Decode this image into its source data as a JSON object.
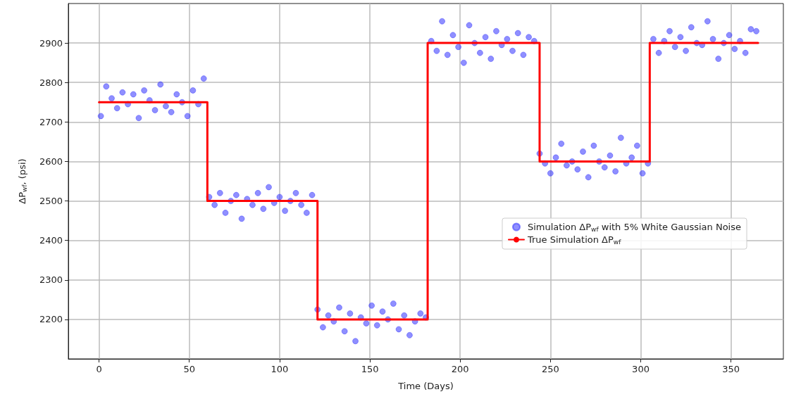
{
  "chart_data": {
    "type": "scatter",
    "xlabel": "Time (Days)",
    "ylabel": "ΔP$_{wf}$, (psi)",
    "x": [
      1,
      4,
      7,
      10,
      13,
      16,
      19,
      22,
      25,
      28,
      31,
      34,
      37,
      40,
      43,
      46,
      49,
      52,
      55,
      58,
      61,
      64,
      67,
      70,
      73,
      76,
      79,
      82,
      85,
      88,
      91,
      94,
      97,
      100,
      103,
      106,
      109,
      112,
      115,
      118,
      121,
      124,
      127,
      130,
      133,
      136,
      139,
      142,
      145,
      148,
      151,
      154,
      157,
      160,
      163,
      166,
      169,
      172,
      175,
      178,
      181,
      184,
      187,
      190,
      193,
      196,
      199,
      202,
      205,
      208,
      211,
      214,
      217,
      220,
      223,
      226,
      229,
      232,
      235,
      238,
      241,
      244,
      247,
      250,
      253,
      256,
      259,
      262,
      265,
      268,
      271,
      274,
      277,
      280,
      283,
      286,
      289,
      292,
      295,
      298,
      301,
      304,
      307,
      310,
      313,
      316,
      319,
      322,
      325,
      328,
      331,
      334,
      337,
      340,
      343,
      346,
      349,
      352,
      355,
      358,
      361,
      364
    ],
    "series": [
      {
        "name": "Simulation ΔP$_{wf}$ with 5% White Gaussian Noise",
        "color": "#3333ff",
        "marker": "circle",
        "values": [
          2715,
          2790,
          2760,
          2735,
          2775,
          2745,
          2770,
          2710,
          2780,
          2755,
          2730,
          2795,
          2740,
          2725,
          2770,
          2750,
          2715,
          2780,
          2745,
          2810,
          2510,
          2490,
          2520,
          2470,
          2500,
          2515,
          2455,
          2505,
          2490,
          2520,
          2480,
          2535,
          2495,
          2510,
          2475,
          2500,
          2520,
          2490,
          2470,
          2515,
          2225,
          2180,
          2210,
          2195,
          2230,
          2170,
          2215,
          2145,
          2205,
          2190,
          2235,
          2185,
          2220,
          2200,
          2240,
          2175,
          2210,
          2160,
          2195,
          2215,
          2205,
          2905,
          2880,
          2955,
          2870,
          2920,
          2890,
          2850,
          2945,
          2900,
          2875,
          2915,
          2860,
          2930,
          2895,
          2910,
          2880,
          2925,
          2870,
          2915,
          2905,
          2620,
          2595,
          2570,
          2610,
          2645,
          2590,
          2600,
          2580,
          2625,
          2560,
          2640,
          2600,
          2585,
          2615,
          2575,
          2660,
          2595,
          2610,
          2640,
          2570,
          2595,
          2910,
          2875,
          2905,
          2930,
          2890,
          2915,
          2880,
          2940,
          2900,
          2895,
          2955,
          2910,
          2860,
          2900,
          2920,
          2885,
          2905,
          2875,
          2935,
          2930
        ]
      },
      {
        "name": "True Simulation ΔP$_{wf}$",
        "type": "line",
        "color": "#ff0000",
        "line_style": "solid",
        "marker": "none",
        "x": [
          0,
          60,
          60,
          121,
          121,
          182,
          182,
          244,
          244,
          305,
          305,
          365
        ],
        "values": [
          2750,
          2750,
          2500,
          2500,
          2200,
          2200,
          2900,
          2900,
          2600,
          2600,
          2900,
          2900
        ]
      }
    ],
    "xlim": [
      -17,
      379
    ],
    "xticks": [
      0,
      50,
      100,
      150,
      200,
      250,
      300,
      350
    ],
    "ylim": [
      2100,
      3000
    ],
    "yticks": [
      2200,
      2300,
      2400,
      2500,
      2600,
      2700,
      2800,
      2900
    ],
    "grid": true,
    "legend": "right"
  }
}
